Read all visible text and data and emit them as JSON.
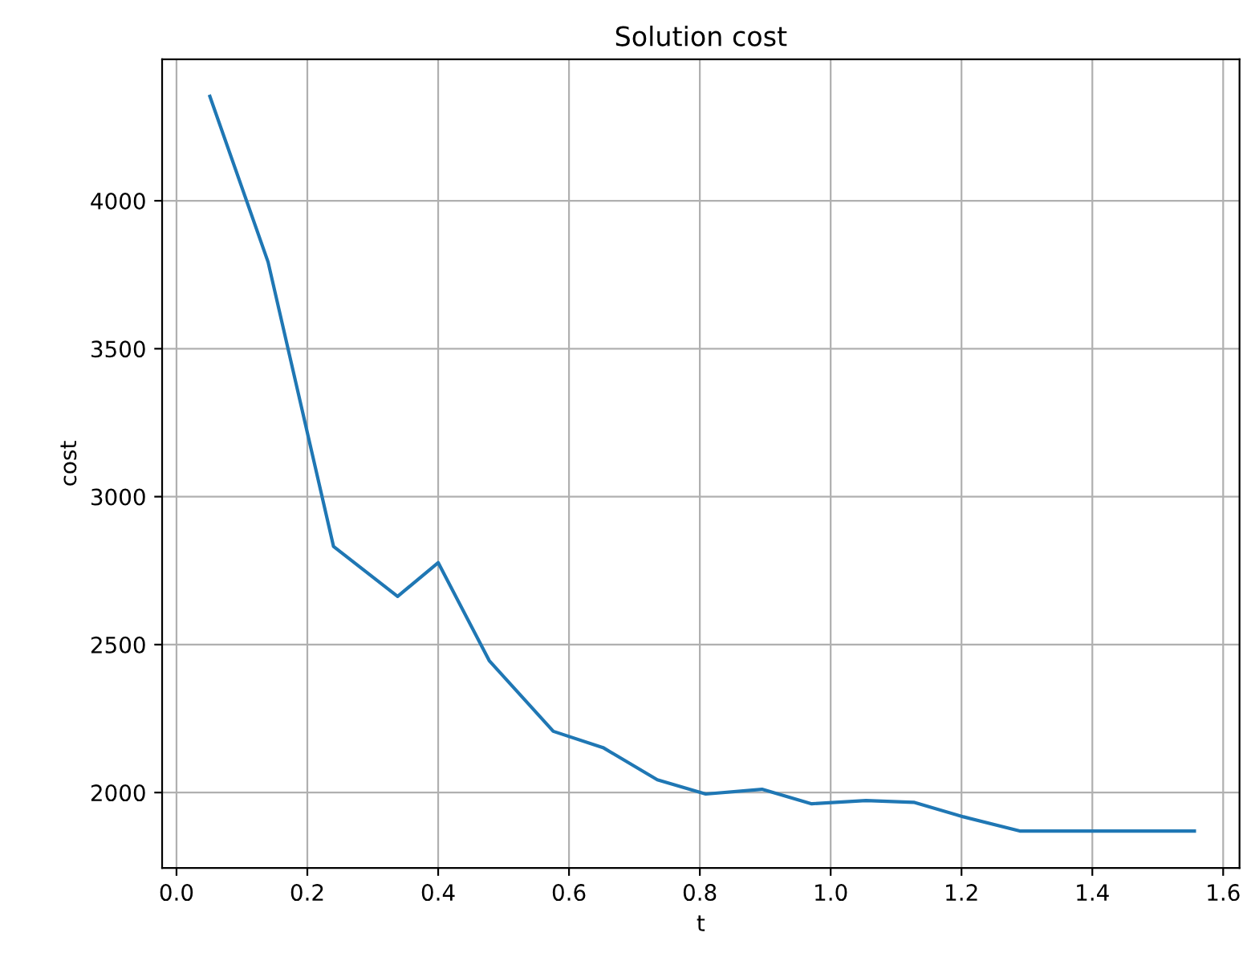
{
  "chart_data": {
    "type": "line",
    "title": "Solution cost",
    "xlabel": "t",
    "ylabel": "cost",
    "series": [
      {
        "color": "#1f77b4",
        "x": [
          0.051,
          0.14,
          0.24,
          0.338,
          0.4,
          0.478,
          0.576,
          0.652,
          0.735,
          0.809,
          0.895,
          0.971,
          1.054,
          1.127,
          1.203,
          1.289,
          1.556
        ],
        "values": [
          4353,
          3793,
          2832,
          2663,
          2777,
          2446,
          2207,
          2152,
          2043,
          1995,
          2011,
          1962,
          1973,
          1967,
          1918,
          1870,
          1870
        ]
      }
    ],
    "xlim": [
      -0.022,
      1.625
    ],
    "ylim": [
      1745,
      4478
    ],
    "xticks": [
      {
        "value": 0.0,
        "label": "0.0"
      },
      0.2,
      0.4,
      0.6,
      0.8,
      {
        "value": 1.0,
        "label": "1.0"
      },
      1.2,
      1.4,
      1.6
    ],
    "yticks": [
      2000,
      2500,
      3000,
      3500,
      4000
    ],
    "grid": true,
    "marker": "none",
    "line_style": "solid"
  }
}
